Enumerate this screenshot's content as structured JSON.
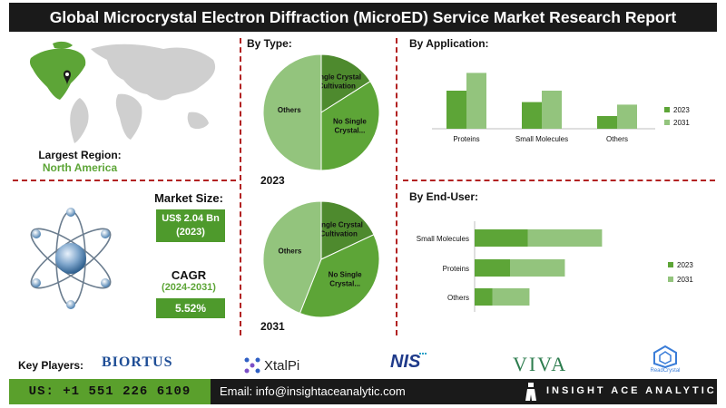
{
  "title": "Global Microcrystal Electron Diffraction (MicroED) Service Market Research Report",
  "region": {
    "label": "Largest Region:",
    "value": "North America"
  },
  "market_size": {
    "label": "Market Size:",
    "value": "US$ 2.04 Bn",
    "year": "(2023)"
  },
  "cagr": {
    "label": "CAGR",
    "period": "(2024-2031)",
    "value": "5.52%"
  },
  "sections": {
    "by_type": "By Type:",
    "by_application": "By Application:",
    "by_end_user": "By End-User:"
  },
  "footer": {
    "key_players_label": "Key Players:",
    "players": [
      "BIORTUS",
      "XtalPi",
      "NIS",
      "VIVA",
      "ReadCrystal"
    ],
    "phone": "US: +1 551 226 6109",
    "email": "Email: info@insightaceanalytic.com",
    "brand": "INSIGHT ACE ANALYTIC"
  },
  "colors": {
    "dark_green": "#4e8a2e",
    "mid_green": "#5da537",
    "light_green": "#93c47d",
    "accent": "#b22222"
  },
  "chart_data": [
    {
      "type": "pie",
      "year_label": "2023",
      "slices": [
        {
          "label": "Single Crystal Cultivation",
          "value": 16
        },
        {
          "label": "No Single Crystal...",
          "value": 34
        },
        {
          "label": "Others",
          "value": 50
        }
      ]
    },
    {
      "type": "pie",
      "year_label": "2031",
      "slices": [
        {
          "label": "Single Crystal Cultivation",
          "value": 18
        },
        {
          "label": "No Single Crystal...",
          "value": 38
        },
        {
          "label": "Others",
          "value": 44
        }
      ]
    },
    {
      "type": "bar",
      "categories": [
        "Proteins",
        "Small Molecules",
        "Others"
      ],
      "series": [
        {
          "name": "2023",
          "values": [
            3.0,
            2.1,
            1.0
          ]
        },
        {
          "name": "2031",
          "values": [
            4.4,
            3.0,
            1.9
          ]
        }
      ],
      "ylim": [
        0,
        5
      ],
      "legend": "right"
    },
    {
      "type": "bar",
      "orientation": "horizontal",
      "categories": [
        "Small Molecules",
        "Proteins",
        "Others"
      ],
      "series": [
        {
          "name": "2023",
          "values": [
            3.0,
            2.0,
            1.0
          ]
        },
        {
          "name": "2031",
          "values": [
            4.2,
            3.1,
            2.1
          ]
        }
      ],
      "stacked": true,
      "legend": "right"
    }
  ]
}
